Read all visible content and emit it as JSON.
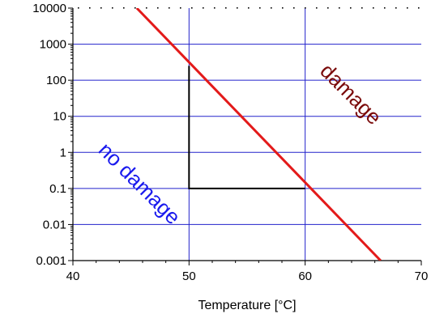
{
  "chart_data": {
    "type": "line",
    "title": "",
    "xlabel": "Temperature [°C]",
    "ylabel": "",
    "xlim": [
      40,
      70
    ],
    "ylim": [
      0.001,
      10000
    ],
    "yscale": "log",
    "grid": true,
    "x_ticks": [
      "40",
      "50",
      "60",
      "70"
    ],
    "y_ticks": [
      "0.001",
      "0.01",
      "0.1",
      "1",
      "10",
      "100",
      "1000",
      "10000"
    ],
    "series": [
      {
        "color": "#e31a1a",
        "points": [
          [
            45.5,
            10000
          ],
          [
            66.5,
            0.001
          ]
        ]
      },
      {
        "color": "#000000",
        "points": [
          [
            50,
            250
          ],
          [
            50,
            0.1
          ],
          [
            60,
            0.1
          ]
        ]
      }
    ],
    "annotations": [
      {
        "text": "damage",
        "x": 63.5,
        "y": 30,
        "rotation": 45,
        "color": "#7a0a0a"
      },
      {
        "text": "no damage",
        "x": 45.3,
        "y": 0.1,
        "rotation": 45,
        "color": "#1a1aee"
      }
    ],
    "colors": {
      "grid": "#2222cc",
      "axis": "#000000"
    }
  }
}
